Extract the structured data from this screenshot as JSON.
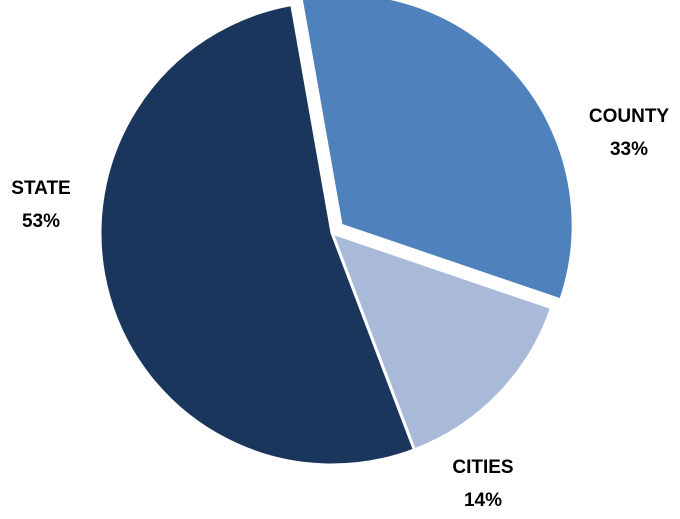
{
  "chart_data": {
    "type": "pie",
    "slices": [
      {
        "label": "COUNTY",
        "percent_label": "33%",
        "value": 33,
        "color": "#4f81bd"
      },
      {
        "label": "CITIES",
        "percent_label": "14%",
        "value": 14,
        "color": "#a9b9d8"
      },
      {
        "label": "STATE",
        "percent_label": "53%",
        "value": 53,
        "color": "#1b365d"
      }
    ],
    "exploded_slice": "COUNTY",
    "legend": "none",
    "data_labels": "outside"
  }
}
